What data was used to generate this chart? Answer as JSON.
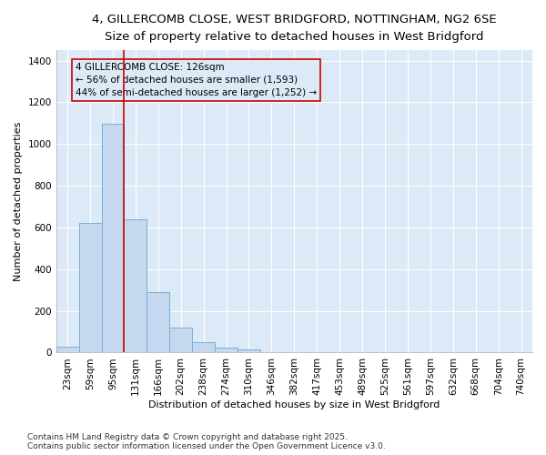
{
  "title_line1": "4, GILLERCOMB CLOSE, WEST BRIDGFORD, NOTTINGHAM, NG2 6SE",
  "title_line2": "Size of property relative to detached houses in West Bridgford",
  "xlabel": "Distribution of detached houses by size in West Bridgford",
  "ylabel": "Number of detached properties",
  "categories": [
    "23sqm",
    "59sqm",
    "95sqm",
    "131sqm",
    "166sqm",
    "202sqm",
    "238sqm",
    "274sqm",
    "310sqm",
    "346sqm",
    "382sqm",
    "417sqm",
    "453sqm",
    "489sqm",
    "525sqm",
    "561sqm",
    "597sqm",
    "632sqm",
    "668sqm",
    "704sqm",
    "740sqm"
  ],
  "values": [
    30,
    620,
    1095,
    640,
    290,
    120,
    50,
    25,
    15,
    0,
    0,
    0,
    0,
    0,
    0,
    0,
    0,
    0,
    0,
    0,
    0
  ],
  "bar_color": "#c5d8f0",
  "bar_edge_color": "#7bafd4",
  "fig_background_color": "#ffffff",
  "plot_background_color": "#dce9f7",
  "grid_color": "#ffffff",
  "vline_color": "#cc0000",
  "vline_x_index": 3,
  "annotation_line1": "4 GILLERCOMB CLOSE: 126sqm",
  "annotation_line2": "← 56% of detached houses are smaller (1,593)",
  "annotation_line3": "44% of semi-detached houses are larger (1,252) →",
  "annotation_box_edge_color": "#cc0000",
  "footer_text": "Contains HM Land Registry data © Crown copyright and database right 2025.\nContains public sector information licensed under the Open Government Licence v3.0.",
  "ylim": [
    0,
    1450
  ],
  "yticks": [
    0,
    200,
    400,
    600,
    800,
    1000,
    1200,
    1400
  ],
  "title_fontsize": 9.5,
  "subtitle_fontsize": 8.5,
  "axis_label_fontsize": 8,
  "tick_fontsize": 7.5,
  "annotation_fontsize": 7.5,
  "footer_fontsize": 6.5
}
